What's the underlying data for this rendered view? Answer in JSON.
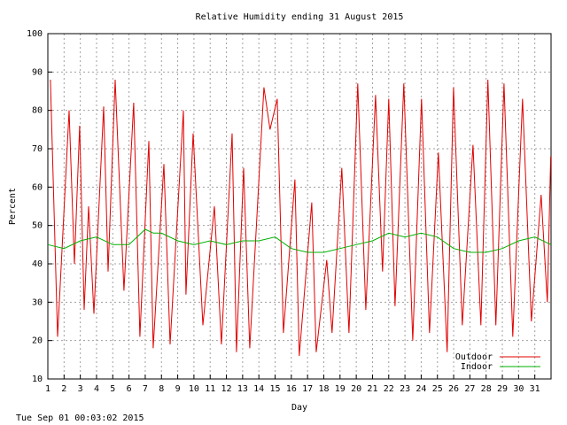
{
  "chart_data": {
    "type": "line",
    "title": "Relative Humidity ending 31 August 2015",
    "ylabel": "Percent",
    "xlabel": "Day",
    "footer": "Tue Sep 01 00:03:02 2015",
    "xlim": [
      1,
      32
    ],
    "xticks": [
      1,
      2,
      3,
      4,
      5,
      6,
      7,
      8,
      9,
      10,
      11,
      12,
      13,
      14,
      15,
      16,
      17,
      18,
      19,
      20,
      21,
      22,
      23,
      24,
      25,
      26,
      27,
      28,
      29,
      30,
      31
    ],
    "ylim": [
      10,
      100
    ],
    "yticks": [
      10,
      20,
      30,
      40,
      50,
      60,
      70,
      80,
      90,
      100
    ],
    "grid": true,
    "legend": "lower right",
    "series": [
      {
        "name": "Outdoor",
        "color": "#e00000",
        "x": [
          1.16,
          1.6,
          2.31,
          2.64,
          2.96,
          3.24,
          3.51,
          3.84,
          4.44,
          4.71,
          5.15,
          5.69,
          6.29,
          6.67,
          7.22,
          7.49,
          8.15,
          8.53,
          9.35,
          9.51,
          9.95,
          10.55,
          11.26,
          11.69,
          12.35,
          12.62,
          13.06,
          13.44,
          14.31,
          14.69,
          15.13,
          15.51,
          16.22,
          16.49,
          17.26,
          17.53,
          18.18,
          18.51,
          19.11,
          19.55,
          20.09,
          20.59,
          21.19,
          21.62,
          22.0,
          22.39,
          22.93,
          23.48,
          24.02,
          24.51,
          25.06,
          25.6,
          25.99,
          26.53,
          27.19,
          27.68,
          28.11,
          28.6,
          29.1,
          29.64,
          30.24,
          30.79,
          31.39,
          31.77,
          31.98
        ],
        "values": [
          88,
          21,
          80,
          40,
          76,
          28,
          55,
          27,
          81,
          38,
          88,
          33,
          82,
          21,
          72,
          18,
          66,
          19,
          80,
          32,
          74,
          24,
          55,
          19,
          74,
          17,
          65,
          18,
          86,
          75,
          83,
          22,
          62,
          16,
          56,
          17,
          41,
          22,
          65,
          22,
          87,
          28,
          84,
          38,
          83,
          29,
          87,
          20,
          83,
          22,
          69,
          17,
          86,
          24,
          71,
          24,
          88,
          24,
          87,
          21,
          83,
          25,
          58,
          30,
          68
        ]
      },
      {
        "name": "Indoor",
        "color": "#00b000",
        "x": [
          1,
          2,
          3,
          4,
          5,
          6,
          7,
          7.5,
          8,
          9,
          10,
          11,
          12,
          13,
          14,
          15,
          16,
          17,
          18,
          19,
          20,
          21,
          22,
          23,
          24,
          25,
          26,
          27,
          28,
          29,
          30,
          31,
          32
        ],
        "values": [
          45,
          44,
          46,
          47,
          45,
          45,
          49,
          48,
          48,
          46,
          45,
          46,
          45,
          46,
          46,
          47,
          44,
          43,
          43,
          44,
          45,
          46,
          48,
          47,
          48,
          47,
          44,
          43,
          43,
          44,
          46,
          47,
          45
        ]
      }
    ]
  }
}
